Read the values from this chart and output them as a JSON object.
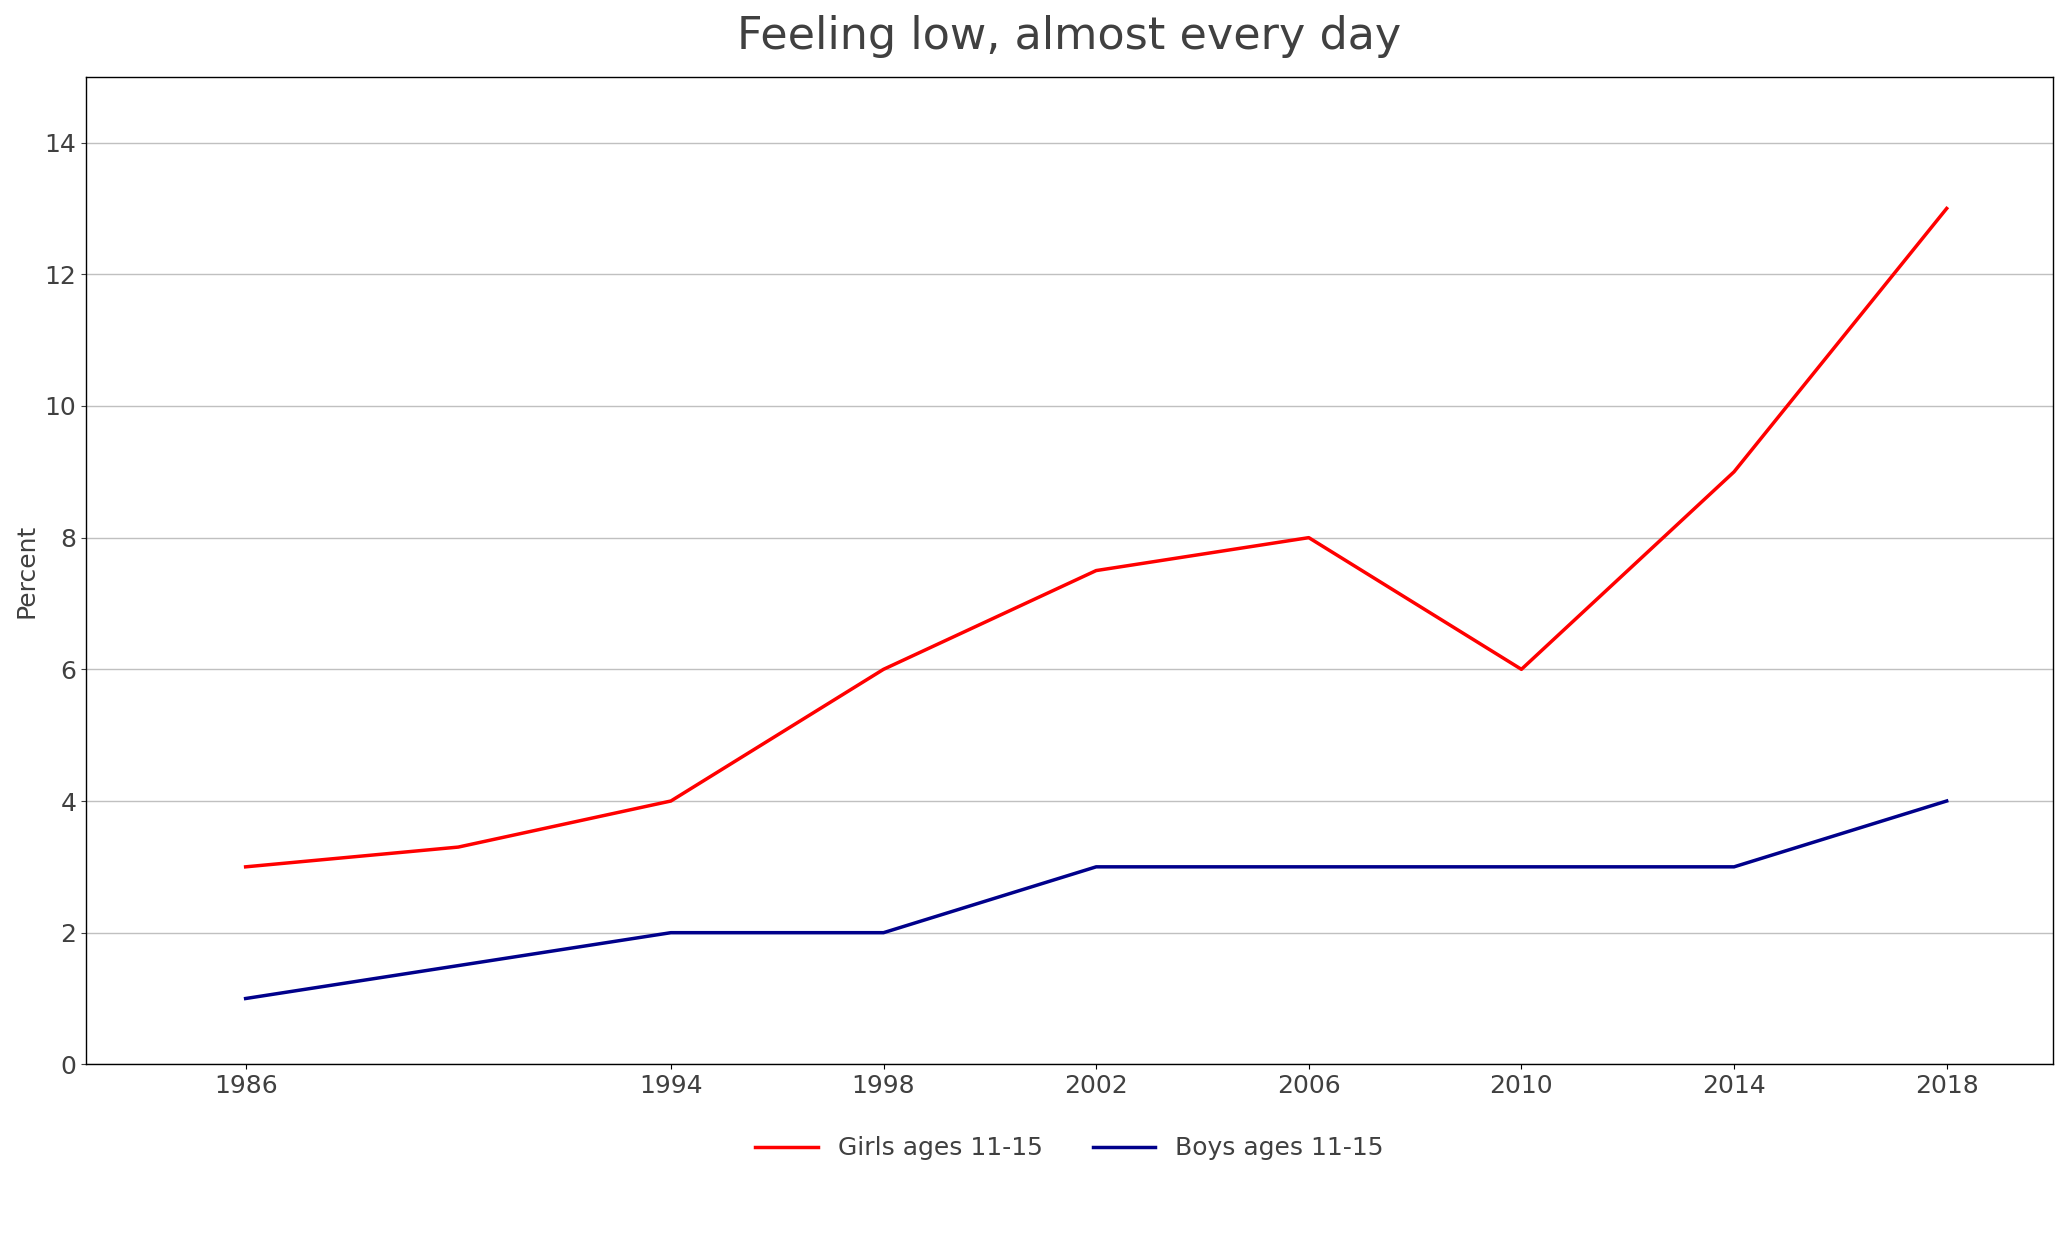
{
  "title": "Feeling low, almost every day",
  "ylabel": "Percent",
  "years": [
    1986,
    1990,
    1994,
    1998,
    2002,
    2006,
    2010,
    2014,
    2018
  ],
  "girls": [
    3.0,
    3.3,
    4.0,
    6.0,
    7.5,
    8.0,
    6.0,
    9.0,
    13.0
  ],
  "boys": [
    1.0,
    1.5,
    2.0,
    2.0,
    3.0,
    3.0,
    3.0,
    3.0,
    4.0
  ],
  "girls_color": "#FF0000",
  "boys_color": "#00008B",
  "girls_label": "Girls ages 11-15",
  "boys_label": "Boys ages 11-15",
  "ylim": [
    0,
    15
  ],
  "yticks": [
    0,
    2,
    4,
    6,
    8,
    10,
    12,
    14
  ],
  "xticks": [
    1986,
    1994,
    1998,
    2002,
    2006,
    2010,
    2014,
    2018
  ],
  "title_fontsize": 32,
  "axis_label_fontsize": 18,
  "tick_fontsize": 18,
  "legend_fontsize": 18,
  "line_width": 2.5,
  "background_color": "#FFFFFF",
  "grid_color": "#C0C0C0"
}
